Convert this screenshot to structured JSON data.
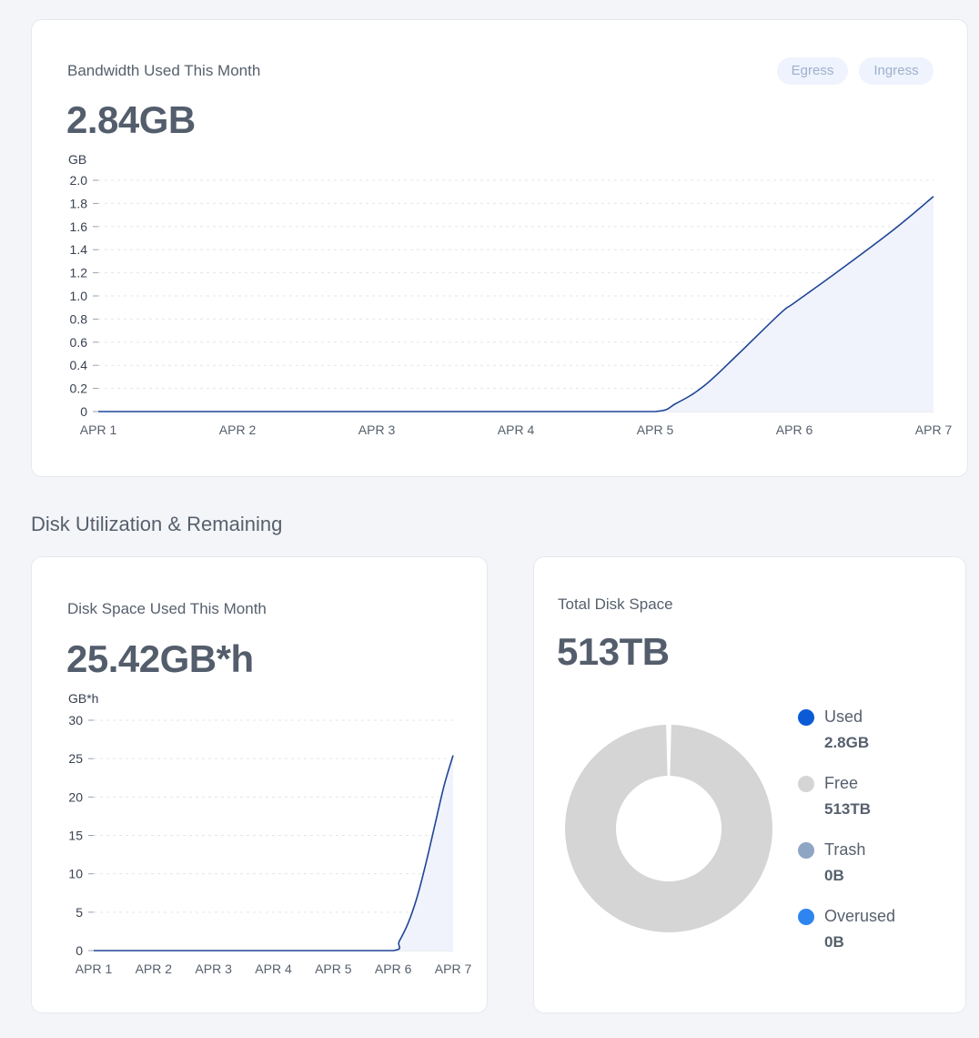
{
  "bandwidth": {
    "title": "Bandwidth Used This Month",
    "value": "2.84GB",
    "toggles": [
      "Egress",
      "Ingress"
    ]
  },
  "section_title": "Disk Utilization & Remaining",
  "disk_space": {
    "title": "Disk Space Used This Month",
    "value": "25.42GB*h"
  },
  "total_disk": {
    "title": "Total Disk Space",
    "value": "513TB",
    "legend": [
      {
        "name": "Used",
        "value": "2.8GB",
        "color": "#0b5bd6"
      },
      {
        "name": "Free",
        "value": "513TB",
        "color": "#d5d5d5"
      },
      {
        "name": "Trash",
        "value": "0B",
        "color": "#8ea5c4"
      },
      {
        "name": "Overused",
        "value": "0B",
        "color": "#2f85f0"
      }
    ]
  },
  "colors": {
    "line": "#1f4597",
    "area": "#f0f3fc",
    "grid": "#e3e5ea"
  },
  "chart_data": [
    {
      "type": "area",
      "ylabel": "GB",
      "categories": [
        "APR 1",
        "APR 2",
        "APR 3",
        "APR 4",
        "APR 5",
        "APR 6",
        "APR 7"
      ],
      "x": [
        0,
        0.5,
        1,
        1.5,
        2,
        2.5,
        3,
        3.5,
        4,
        4.15,
        4.35,
        4.6,
        4.9,
        5.0,
        5.3,
        5.7,
        6.0
      ],
      "values": [
        0,
        0,
        0,
        0,
        0,
        0,
        0,
        0,
        0,
        0.07,
        0.22,
        0.5,
        0.85,
        0.94,
        1.2,
        1.56,
        1.86
      ],
      "yticks": [
        0,
        0.2,
        0.4,
        0.6,
        0.8,
        1.0,
        1.2,
        1.4,
        1.6,
        1.8,
        2.0
      ],
      "ylim": [
        0,
        2.0
      ],
      "grid": true
    },
    {
      "type": "area",
      "ylabel": "GB*h",
      "categories": [
        "APR 1",
        "APR 2",
        "APR 3",
        "APR 4",
        "APR 5",
        "APR 6",
        "APR 7"
      ],
      "x": [
        0,
        1,
        2,
        3,
        4,
        5,
        5.1,
        5.25,
        5.4,
        5.55,
        5.7,
        5.85,
        6.0
      ],
      "values": [
        0,
        0,
        0,
        0,
        0,
        0,
        1.2,
        3.6,
        7.0,
        11.5,
        16.5,
        21.5,
        25.42
      ],
      "yticks": [
        0,
        5,
        10,
        15,
        20,
        25,
        30
      ],
      "ylim": [
        0,
        30
      ],
      "grid": true
    },
    {
      "type": "pie",
      "labels": [
        "Used",
        "Free",
        "Trash",
        "Overused"
      ],
      "values": [
        2.8,
        513000000,
        0,
        0
      ],
      "units": "KB-relative",
      "colors": [
        "#0b5bd6",
        "#d5d5d5",
        "#8ea5c4",
        "#2f85f0"
      ]
    }
  ]
}
